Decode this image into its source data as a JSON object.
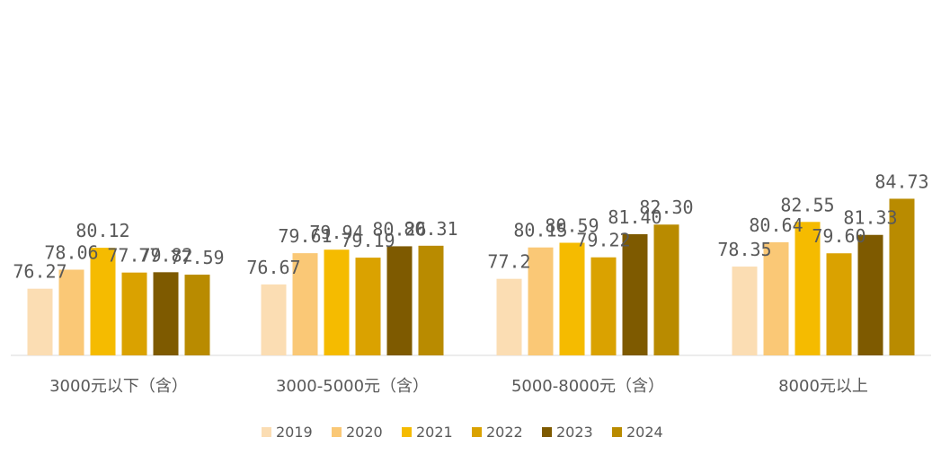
{
  "chart_data": {
    "type": "bar",
    "title": "",
    "xlabel": "",
    "ylabel": "",
    "ylim": [
      70,
      86
    ],
    "grid": false,
    "legend_position": "bottom",
    "categories": [
      "3000元以下（含）",
      "3000-5000元（含）",
      "5000-8000元（含）",
      "8000元以上"
    ],
    "series": [
      {
        "name": "2019",
        "color": "#FBDDB3",
        "values": [
          76.27,
          76.67,
          77.2,
          78.35
        ],
        "labels": [
          "76.27",
          "76.67",
          "77.2",
          "78.35"
        ]
      },
      {
        "name": "2020",
        "color": "#FAC876",
        "values": [
          78.06,
          79.61,
          80.15,
          80.64
        ],
        "labels": [
          "78.06",
          "79.61",
          "80.15",
          "80.64"
        ]
      },
      {
        "name": "2021",
        "color": "#F5BB00",
        "values": [
          80.12,
          79.94,
          80.59,
          82.55
        ],
        "labels": [
          "80.12",
          "79.94",
          "80.59",
          "82.55"
        ]
      },
      {
        "name": "2022",
        "color": "#DAA200",
        "values": [
          77.79,
          79.19,
          79.22,
          79.6
        ],
        "labels": [
          "77.79",
          "79.19",
          "79.22",
          "79.60"
        ]
      },
      {
        "name": "2023",
        "color": "#7E5A00",
        "values": [
          77.82,
          80.26,
          81.4,
          81.33
        ],
        "labels": [
          "77.82",
          "80.26",
          "81.40",
          "81.33"
        ]
      },
      {
        "name": "2024",
        "color": "#B98B00",
        "values": [
          77.59,
          80.31,
          82.3,
          84.73
        ],
        "labels": [
          "77.59",
          "80.31",
          "82.30",
          "84.73"
        ]
      }
    ]
  }
}
